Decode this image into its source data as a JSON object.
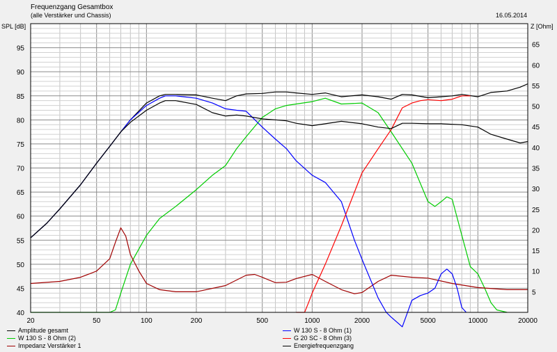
{
  "chart_data": {
    "type": "line",
    "title": "Frequenzgang Gesamtbox",
    "subtitle": "(alle Verstärker und Chassis)",
    "date": "16.05.2014",
    "ylabel_left": "SPL [dB]",
    "ylabel_right": "Z [Ohm]",
    "x_scale": "log",
    "xlim": [
      20,
      20000
    ],
    "ylim_left": [
      40,
      100
    ],
    "ylim_right": [
      0,
      70
    ],
    "x_ticks": [
      20,
      50,
      100,
      200,
      500,
      1000,
      2000,
      5000,
      10000,
      20000
    ],
    "x_tick_labels": [
      "20",
      "50",
      "100",
      "200",
      "500",
      "1000",
      "2000",
      "5000",
      "10000",
      "20000"
    ],
    "y_left_ticks": [
      "40",
      "45",
      "50",
      "55",
      "60",
      "65",
      "70",
      "75",
      "80",
      "85",
      "90",
      "95"
    ],
    "y_right_ticks": [
      "5",
      "10",
      "15",
      "20",
      "25",
      "30",
      "35",
      "40",
      "45",
      "50",
      "55",
      "60",
      "65"
    ],
    "grid": true,
    "series": [
      {
        "name": "Amplitude gesamt",
        "color": "#000000",
        "axis": "left",
        "points": [
          [
            20,
            55.5
          ],
          [
            25,
            58.5
          ],
          [
            30,
            61.5
          ],
          [
            40,
            66.5
          ],
          [
            50,
            71
          ],
          [
            60,
            74.5
          ],
          [
            70,
            77.5
          ],
          [
            80,
            80
          ],
          [
            100,
            83.5
          ],
          [
            120,
            85
          ],
          [
            130,
            85.3
          ],
          [
            150,
            85.3
          ],
          [
            200,
            85.2
          ],
          [
            250,
            84.5
          ],
          [
            300,
            84
          ],
          [
            350,
            85
          ],
          [
            400,
            85.4
          ],
          [
            500,
            85.5
          ],
          [
            600,
            85.8
          ],
          [
            700,
            85.8
          ],
          [
            800,
            85.6
          ],
          [
            1000,
            85.3
          ],
          [
            1200,
            85.6
          ],
          [
            1500,
            84.8
          ],
          [
            2000,
            85.2
          ],
          [
            2500,
            84.8
          ],
          [
            3000,
            84.3
          ],
          [
            3500,
            85.3
          ],
          [
            4000,
            85.2
          ],
          [
            5000,
            84.6
          ],
          [
            6000,
            84.8
          ],
          [
            7000,
            85
          ],
          [
            8000,
            85.3
          ],
          [
            10000,
            84.8
          ],
          [
            12000,
            85.7
          ],
          [
            15000,
            86
          ],
          [
            18000,
            86.8
          ],
          [
            20000,
            87.5
          ]
        ]
      },
      {
        "name": "W 130 S - 8 Ohm (2)",
        "color": "#00cc00",
        "axis": "left",
        "points": [
          [
            20,
            40
          ],
          [
            60,
            40
          ],
          [
            65,
            40.5
          ],
          [
            70,
            44
          ],
          [
            80,
            50
          ],
          [
            100,
            56
          ],
          [
            120,
            59.5
          ],
          [
            150,
            62
          ],
          [
            200,
            65.5
          ],
          [
            250,
            68.5
          ],
          [
            300,
            70.5
          ],
          [
            350,
            74
          ],
          [
            400,
            76.5
          ],
          [
            500,
            80.5
          ],
          [
            600,
            82.3
          ],
          [
            700,
            83
          ],
          [
            800,
            83.3
          ],
          [
            1000,
            83.8
          ],
          [
            1200,
            84.5
          ],
          [
            1500,
            83.3
          ],
          [
            2000,
            83.5
          ],
          [
            2500,
            81.5
          ],
          [
            3000,
            77.5
          ],
          [
            4000,
            71
          ],
          [
            5000,
            63
          ],
          [
            5500,
            62
          ],
          [
            6000,
            63
          ],
          [
            6500,
            64
          ],
          [
            7000,
            63.5
          ],
          [
            8000,
            56
          ],
          [
            9000,
            49.5
          ],
          [
            10000,
            48
          ],
          [
            11000,
            45
          ],
          [
            12000,
            42
          ],
          [
            13000,
            40.5
          ],
          [
            15000,
            40
          ]
        ]
      },
      {
        "name": "Impedanz Verstärker 1",
        "color": "#a00000",
        "axis": "right",
        "points": [
          [
            20,
            7
          ],
          [
            30,
            7.5
          ],
          [
            40,
            8.5
          ],
          [
            50,
            10
          ],
          [
            60,
            13
          ],
          [
            65,
            17
          ],
          [
            70,
            20.5
          ],
          [
            75,
            18.5
          ],
          [
            80,
            14
          ],
          [
            90,
            10
          ],
          [
            100,
            7
          ],
          [
            120,
            5.5
          ],
          [
            150,
            5
          ],
          [
            200,
            5
          ],
          [
            300,
            6.5
          ],
          [
            400,
            9
          ],
          [
            450,
            9.2
          ],
          [
            500,
            8.5
          ],
          [
            600,
            7.2
          ],
          [
            700,
            7.3
          ],
          [
            800,
            8.2
          ],
          [
            1000,
            9.2
          ],
          [
            1200,
            7.5
          ],
          [
            1500,
            5.5
          ],
          [
            1800,
            4.5
          ],
          [
            2000,
            4.8
          ],
          [
            2500,
            7.5
          ],
          [
            3000,
            9
          ],
          [
            4000,
            8.5
          ],
          [
            5000,
            8.3
          ],
          [
            7000,
            7
          ],
          [
            10000,
            6
          ],
          [
            15000,
            5.5
          ],
          [
            20000,
            5.5
          ]
        ]
      },
      {
        "name": "W 130 S - 8 Ohm (1)",
        "color": "#0000ff",
        "axis": "left",
        "points": [
          [
            20,
            55.5
          ],
          [
            25,
            58.5
          ],
          [
            30,
            61.5
          ],
          [
            40,
            66.5
          ],
          [
            50,
            71
          ],
          [
            60,
            74.5
          ],
          [
            70,
            77.5
          ],
          [
            80,
            80
          ],
          [
            100,
            83
          ],
          [
            120,
            84.5
          ],
          [
            130,
            85
          ],
          [
            150,
            85
          ],
          [
            200,
            84.5
          ],
          [
            250,
            83.5
          ],
          [
            300,
            82.3
          ],
          [
            350,
            82
          ],
          [
            400,
            81.8
          ],
          [
            500,
            78.5
          ],
          [
            600,
            76
          ],
          [
            700,
            74
          ],
          [
            800,
            71.5
          ],
          [
            1000,
            68.5
          ],
          [
            1200,
            67
          ],
          [
            1500,
            63
          ],
          [
            1800,
            55
          ],
          [
            2000,
            51
          ],
          [
            2500,
            43
          ],
          [
            2800,
            40
          ],
          [
            3000,
            39
          ],
          [
            3500,
            37
          ],
          [
            4000,
            42.5
          ],
          [
            4500,
            43.5
          ],
          [
            5000,
            44
          ],
          [
            5500,
            45
          ],
          [
            6000,
            48
          ],
          [
            6500,
            49
          ],
          [
            7000,
            48
          ],
          [
            7500,
            45
          ],
          [
            8000,
            41
          ],
          [
            8500,
            40
          ]
        ]
      },
      {
        "name": "G 20 SC - 8 Ohm (3)",
        "color": "#ff0000",
        "axis": "left",
        "points": [
          [
            800,
            40
          ],
          [
            900,
            40
          ],
          [
            950,
            42
          ],
          [
            1000,
            44
          ],
          [
            1200,
            50
          ],
          [
            1500,
            58
          ],
          [
            1800,
            65
          ],
          [
            2000,
            69
          ],
          [
            2500,
            74
          ],
          [
            3000,
            78
          ],
          [
            3500,
            82.5
          ],
          [
            4000,
            83.5
          ],
          [
            4500,
            84
          ],
          [
            5000,
            84.2
          ],
          [
            6000,
            84
          ],
          [
            7000,
            84.3
          ],
          [
            8000,
            85
          ],
          [
            9000,
            85
          ]
        ]
      },
      {
        "name": "Energiefrequenzgang",
        "color": "#000000",
        "axis": "left",
        "points": [
          [
            20,
            55.5
          ],
          [
            25,
            58.5
          ],
          [
            30,
            61.5
          ],
          [
            40,
            66.5
          ],
          [
            50,
            71
          ],
          [
            60,
            74.5
          ],
          [
            70,
            77.5
          ],
          [
            80,
            79.5
          ],
          [
            100,
            82
          ],
          [
            120,
            83.5
          ],
          [
            130,
            84
          ],
          [
            150,
            84
          ],
          [
            200,
            83.2
          ],
          [
            250,
            81.5
          ],
          [
            300,
            80.8
          ],
          [
            350,
            81
          ],
          [
            400,
            80.8
          ],
          [
            500,
            80.2
          ],
          [
            600,
            80
          ],
          [
            700,
            79.8
          ],
          [
            800,
            79.3
          ],
          [
            1000,
            78.8
          ],
          [
            1200,
            79.2
          ],
          [
            1500,
            79.7
          ],
          [
            2000,
            79.2
          ],
          [
            2500,
            78.5
          ],
          [
            3000,
            78.2
          ],
          [
            3500,
            79.3
          ],
          [
            4000,
            79.3
          ],
          [
            5000,
            79.2
          ],
          [
            6000,
            79.2
          ],
          [
            8000,
            79
          ],
          [
            10000,
            78.5
          ],
          [
            12000,
            77
          ],
          [
            15000,
            76
          ],
          [
            18000,
            75.2
          ],
          [
            20000,
            75.5
          ]
        ]
      }
    ]
  }
}
